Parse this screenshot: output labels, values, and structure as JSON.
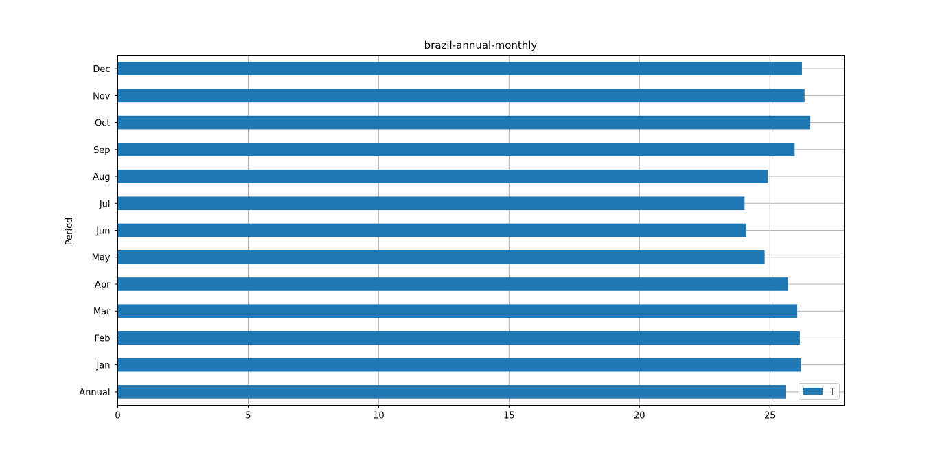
{
  "chart_data": {
    "type": "bar",
    "orientation": "horizontal",
    "title": "brazil-annual-monthly",
    "xlabel": "",
    "ylabel": "Period",
    "categories": [
      "Annual",
      "Jan",
      "Feb",
      "Mar",
      "Apr",
      "May",
      "Jun",
      "Jul",
      "Aug",
      "Sep",
      "Oct",
      "Nov",
      "Dec"
    ],
    "series": [
      {
        "name": "T",
        "color": "#1f77b4",
        "values": [
          25.6,
          26.2,
          26.15,
          26.05,
          25.7,
          24.8,
          24.1,
          24.03,
          24.93,
          25.95,
          26.55,
          26.33,
          26.23
        ]
      }
    ],
    "xlim": [
      0,
      27.85
    ],
    "xticks": [
      0,
      5,
      10,
      15,
      20,
      25
    ],
    "grid": true,
    "legend_position": "lower-right"
  }
}
